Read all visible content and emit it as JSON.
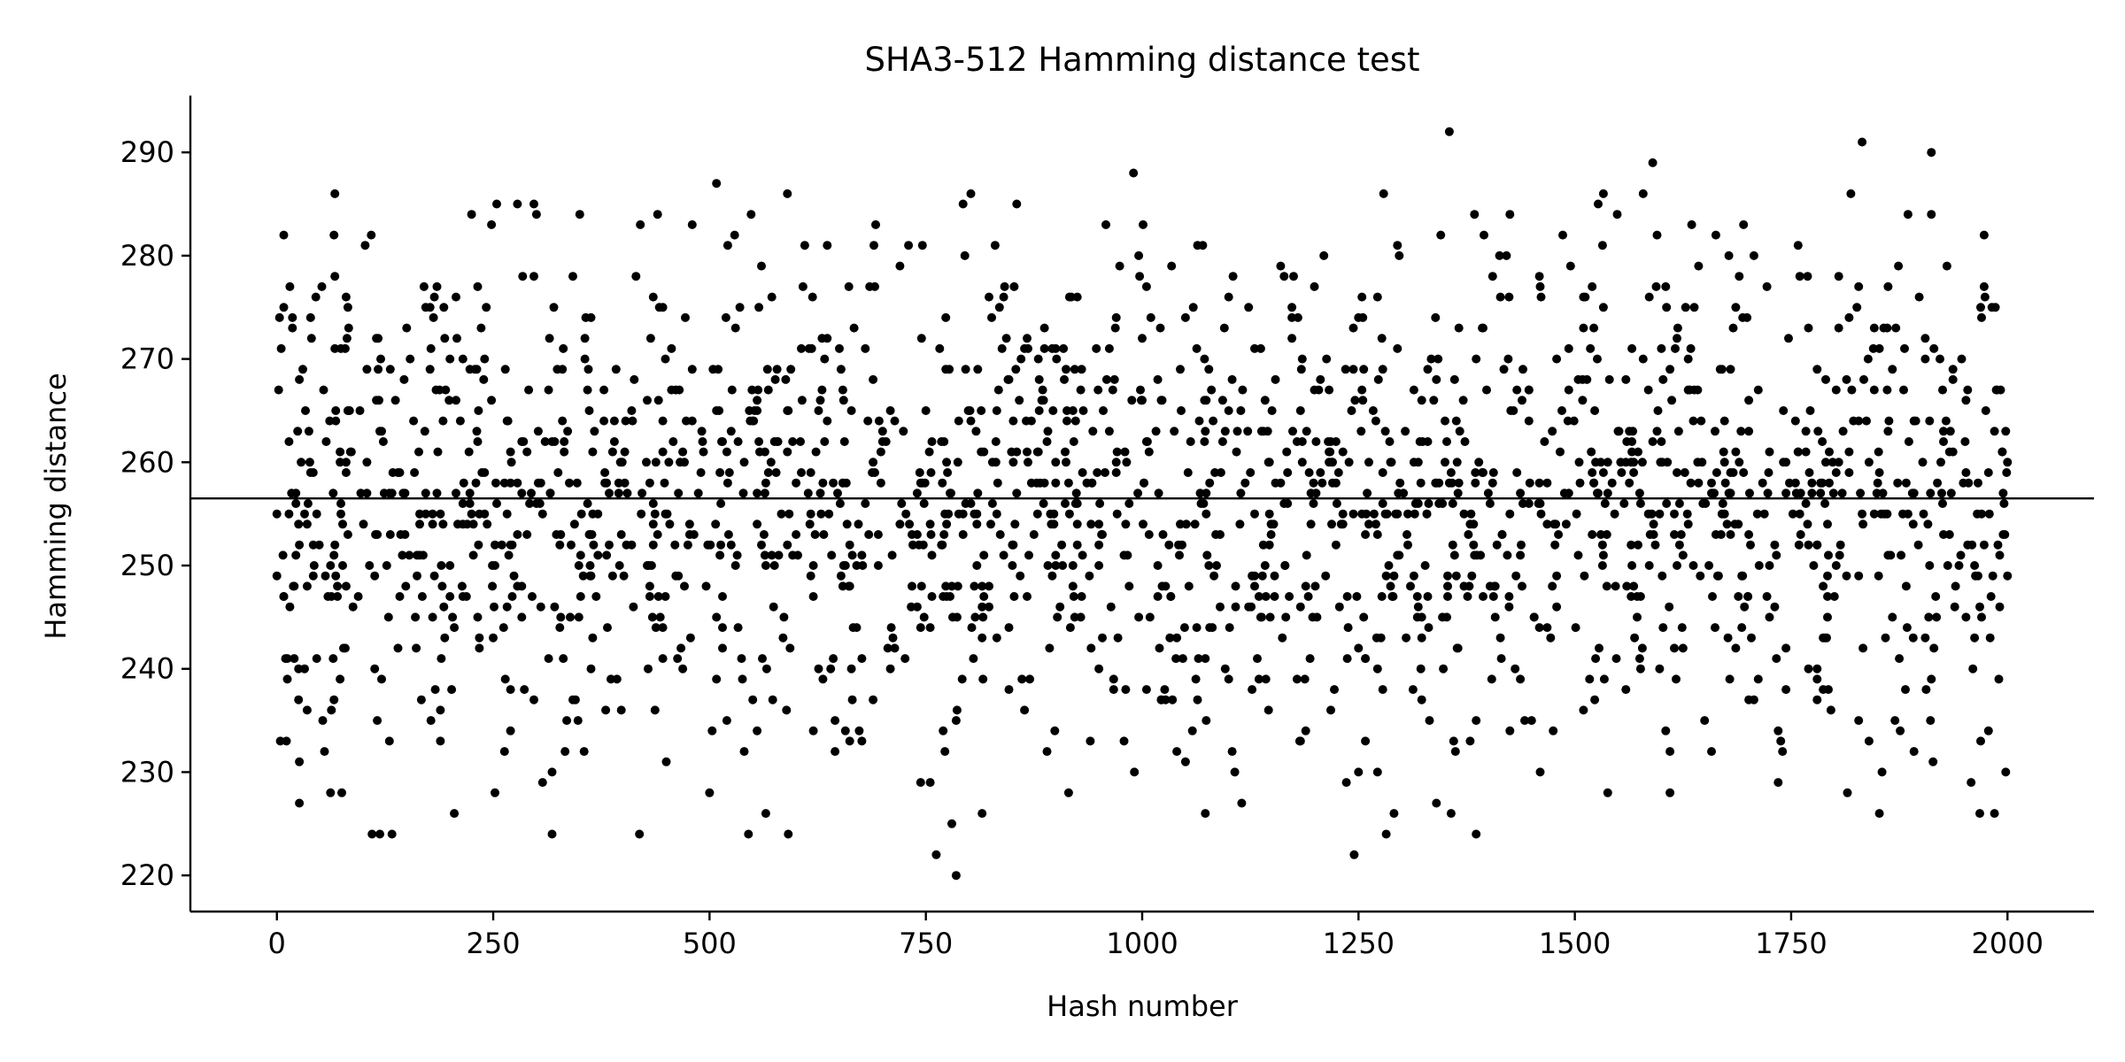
{
  "chart_data": {
    "type": "scatter",
    "title": "SHA3-512 Hamming distance test",
    "xlabel": "Hash number",
    "ylabel": "Hamming distance",
    "xlim": [
      -100,
      2100
    ],
    "ylim": [
      216.5,
      295.5
    ],
    "xticks": [
      0,
      250,
      500,
      750,
      1000,
      1250,
      1500,
      1750,
      2000
    ],
    "xtick_labels": [
      "0",
      "250",
      "500",
      "750",
      "1000",
      "1250",
      "1500",
      "1750",
      "2000"
    ],
    "yticks": [
      220,
      230,
      240,
      250,
      260,
      270,
      280,
      290
    ],
    "ytick_labels": [
      "220",
      "230",
      "240",
      "250",
      "260",
      "270",
      "280",
      "290"
    ],
    "grid": false,
    "legend": "none",
    "point_color": "#000000",
    "line_color": "#000000",
    "mean_line": 256.5,
    "n_points": 2000,
    "series": [
      {
        "sampled_points": [
          [
            0,
            249
          ],
          [
            4,
            233
          ],
          [
            8,
            247
          ],
          [
            12,
            241
          ],
          [
            14,
            262
          ],
          [
            18,
            274
          ],
          [
            22,
            256
          ],
          [
            26,
            231
          ],
          [
            30,
            269
          ],
          [
            35,
            236
          ],
          [
            40,
            272
          ],
          [
            46,
            241
          ],
          [
            55,
            232
          ],
          [
            62,
            228
          ],
          [
            70,
            248
          ],
          [
            80,
            276
          ],
          [
            88,
            246
          ],
          [
            96,
            265
          ],
          [
            104,
            257
          ],
          [
            110,
            224
          ],
          [
            120,
            270
          ],
          [
            130,
            233
          ],
          [
            140,
            259
          ],
          [
            150,
            273
          ],
          [
            160,
            245
          ],
          [
            170,
            277
          ],
          [
            180,
            254
          ],
          [
            190,
            241
          ],
          [
            200,
            270
          ],
          [
            205,
            226
          ],
          [
            212,
            264
          ],
          [
            225,
            284
          ],
          [
            232,
            277
          ],
          [
            240,
            255
          ],
          [
            248,
            283
          ],
          [
            252,
            228
          ],
          [
            260,
            252
          ],
          [
            270,
            234
          ],
          [
            278,
            285
          ],
          [
            285,
            262
          ],
          [
            295,
            247
          ],
          [
            305,
            258
          ],
          [
            318,
            230
          ],
          [
            330,
            269
          ],
          [
            345,
            237
          ],
          [
            350,
            284
          ],
          [
            355,
            232
          ],
          [
            362,
            250
          ],
          [
            380,
            236
          ],
          [
            395,
            257
          ],
          [
            410,
            265
          ],
          [
            420,
            283
          ],
          [
            428,
            250
          ],
          [
            435,
            276
          ],
          [
            440,
            284
          ],
          [
            450,
            231
          ],
          [
            460,
            252
          ],
          [
            472,
            274
          ],
          [
            480,
            283
          ],
          [
            492,
            262
          ],
          [
            500,
            228
          ],
          [
            508,
            287
          ],
          [
            515,
            242
          ],
          [
            525,
            263
          ],
          [
            535,
            275
          ],
          [
            540,
            232
          ],
          [
            548,
            284
          ],
          [
            555,
            254
          ],
          [
            560,
            279
          ],
          [
            565,
            226
          ],
          [
            575,
            250
          ],
          [
            585,
            243
          ],
          [
            600,
            258
          ],
          [
            610,
            281
          ],
          [
            620,
            234
          ],
          [
            630,
            267
          ],
          [
            640,
            240
          ],
          [
            655,
            250
          ],
          [
            665,
            237
          ],
          [
            680,
            256
          ],
          [
            690,
            281
          ],
          [
            700,
            263
          ],
          [
            710,
            244
          ],
          [
            720,
            279
          ],
          [
            730,
            281
          ],
          [
            740,
            253
          ],
          [
            755,
            229
          ],
          [
            762,
            222
          ],
          [
            770,
            234
          ],
          [
            780,
            248
          ],
          [
            785,
            220
          ],
          [
            795,
            280
          ],
          [
            805,
            241
          ],
          [
            815,
            226
          ],
          [
            825,
            254
          ],
          [
            830,
            281
          ],
          [
            840,
            276
          ],
          [
            855,
            261
          ],
          [
            870,
            239
          ],
          [
            880,
            270
          ],
          [
            890,
            232
          ],
          [
            905,
            246
          ],
          [
            915,
            258
          ],
          [
            925,
            276
          ],
          [
            940,
            233
          ],
          [
            950,
            250
          ],
          [
            958,
            283
          ],
          [
            970,
            260
          ],
          [
            985,
            248
          ],
          [
            990,
            288
          ],
          [
            1000,
            266
          ],
          [
            1010,
            274
          ],
          [
            1020,
            242
          ],
          [
            1035,
            237
          ],
          [
            1040,
            232
          ],
          [
            1050,
            274
          ],
          [
            1058,
            234
          ],
          [
            1070,
            281
          ],
          [
            1080,
            267
          ],
          [
            1090,
            246
          ],
          [
            1100,
            276
          ],
          [
            1110,
            263
          ],
          [
            1115,
            227
          ],
          [
            1130,
            255
          ],
          [
            1140,
            252
          ],
          [
            1148,
            245
          ],
          [
            1160,
            279
          ],
          [
            1175,
            278
          ],
          [
            1185,
            260
          ],
          [
            1200,
            248
          ],
          [
            1210,
            280
          ],
          [
            1222,
            238
          ],
          [
            1232,
            261
          ],
          [
            1245,
            222
          ],
          [
            1255,
            266
          ],
          [
            1262,
            254
          ],
          [
            1272,
            276
          ],
          [
            1285,
            250
          ],
          [
            1295,
            281
          ],
          [
            1305,
            243
          ],
          [
            1315,
            255
          ],
          [
            1330,
            262
          ],
          [
            1340,
            227
          ],
          [
            1345,
            282
          ],
          [
            1355,
            292
          ],
          [
            1362,
            232
          ],
          [
            1372,
            255
          ],
          [
            1385,
            258
          ],
          [
            1395,
            282
          ],
          [
            1405,
            278
          ],
          [
            1415,
            241
          ],
          [
            1425,
            234
          ],
          [
            1440,
            256
          ],
          [
            1450,
            235
          ],
          [
            1460,
            277
          ],
          [
            1475,
            234
          ],
          [
            1485,
            265
          ],
          [
            1495,
            279
          ],
          [
            1510,
            236
          ],
          [
            1520,
            259
          ],
          [
            1530,
            253
          ],
          [
            1538,
            228
          ],
          [
            1548,
            241
          ],
          [
            1560,
            262
          ],
          [
            1572,
            247
          ],
          [
            1585,
            255
          ],
          [
            1590,
            289
          ],
          [
            1598,
            240
          ],
          [
            1605,
            277
          ],
          [
            1610,
            228
          ],
          [
            1620,
            263
          ],
          [
            1635,
            283
          ],
          [
            1645,
            249
          ],
          [
            1658,
            232
          ],
          [
            1668,
            269
          ],
          [
            1678,
            257
          ],
          [
            1690,
            278
          ],
          [
            1700,
            247
          ],
          [
            1712,
            239
          ],
          [
            1722,
            277
          ],
          [
            1735,
            229
          ],
          [
            1748,
            258
          ],
          [
            1758,
            281
          ],
          [
            1770,
            252
          ],
          [
            1780,
            237
          ],
          [
            1790,
            268
          ],
          [
            1805,
            278
          ],
          [
            1815,
            228
          ],
          [
            1828,
            235
          ],
          [
            1832,
            291
          ],
          [
            1840,
            233
          ],
          [
            1852,
            226
          ],
          [
            1862,
            263
          ],
          [
            1875,
            241
          ],
          [
            1885,
            284
          ],
          [
            1892,
            232
          ],
          [
            1905,
            272
          ],
          [
            1912,
            290
          ],
          [
            1922,
            270
          ],
          [
            1930,
            279
          ],
          [
            1940,
            248
          ],
          [
            1952,
            266
          ],
          [
            1960,
            240
          ],
          [
            1970,
            274
          ],
          [
            1978,
            234
          ],
          [
            1985,
            226
          ],
          [
            1990,
            239
          ],
          [
            1995,
            257
          ],
          [
            1998,
            230
          ],
          [
            2000,
            249
          ]
        ]
      }
    ]
  }
}
